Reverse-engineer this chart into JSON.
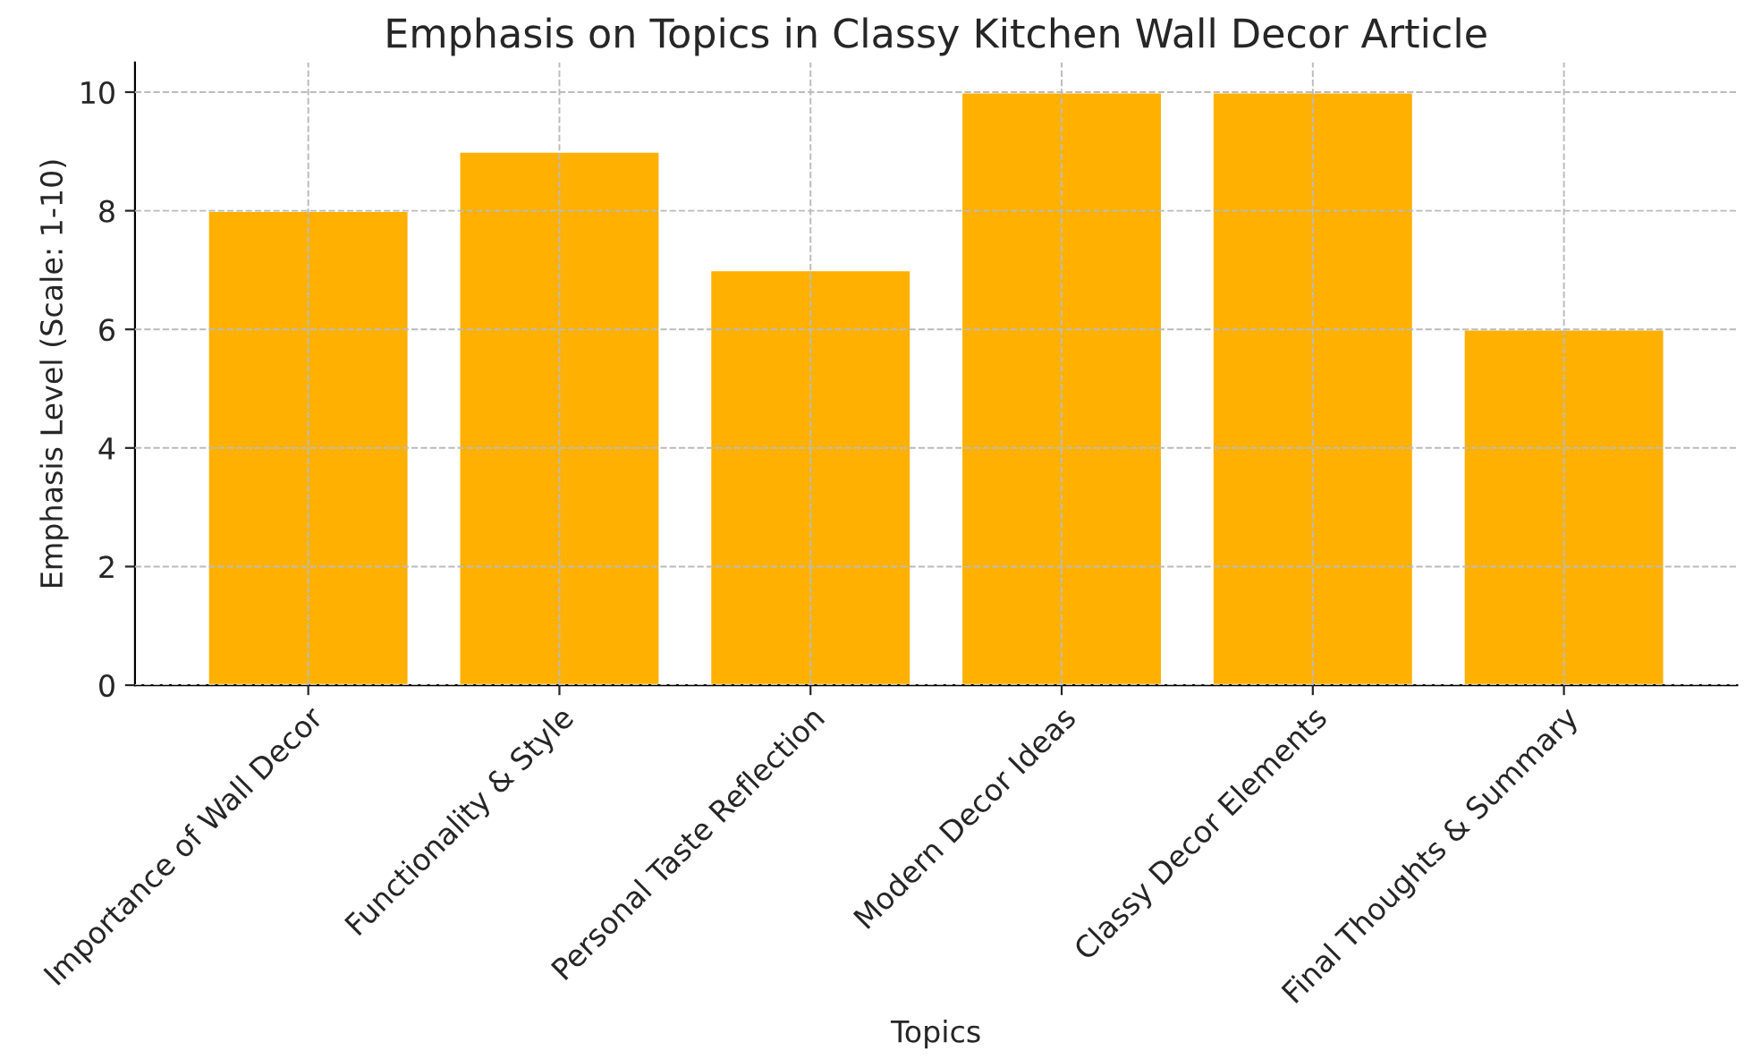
{
  "chart_data": {
    "type": "bar",
    "title": "Emphasis on Topics in Classy Kitchen Wall Decor Article",
    "xlabel": "Topics",
    "ylabel": "Emphasis Level (Scale: 1-10)",
    "categories": [
      "Importance of Wall Decor",
      "Functionality & Style",
      "Personal Taste Reflection",
      "Modern Decor Ideas",
      "Classy Decor Elements",
      "Final Thoughts & Summary"
    ],
    "values": [
      8,
      9,
      7,
      10,
      10,
      6
    ],
    "color": "#ffb000",
    "ylim": [
      0,
      10.5
    ],
    "yticks": [
      0,
      2,
      4,
      6,
      8,
      10
    ],
    "grid": true
  }
}
